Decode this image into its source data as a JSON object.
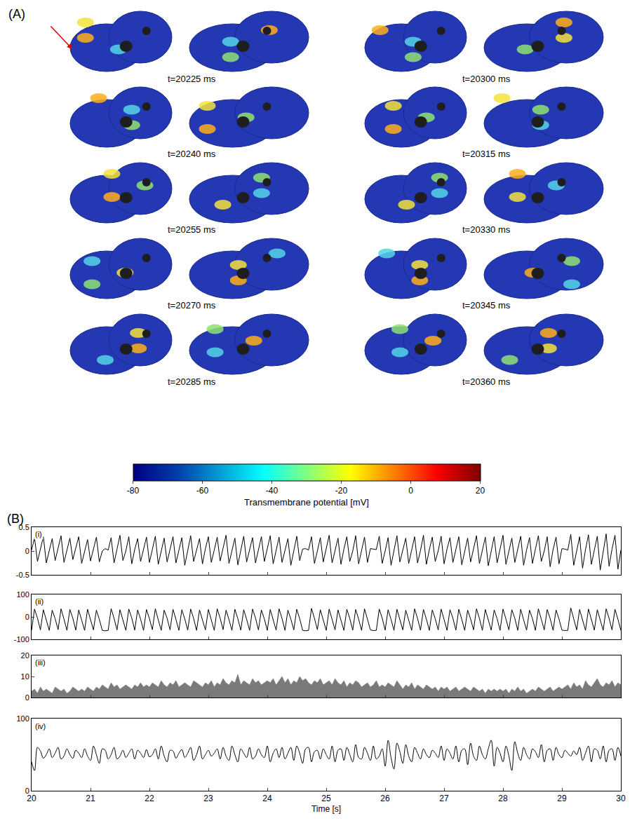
{
  "panel_a": {
    "label": "(A)",
    "snapshots": [
      {
        "label": "t=20225 ms"
      },
      {
        "label": "t=20240 ms"
      },
      {
        "label": "t=20255 ms"
      },
      {
        "label": "t=20270 ms"
      },
      {
        "label": "t=20285 ms"
      },
      {
        "label": "t=20300 ms"
      },
      {
        "label": "t=20315 ms"
      },
      {
        "label": "t=20330 ms"
      },
      {
        "label": "t=20345 ms"
      },
      {
        "label": "t=20360 ms"
      }
    ],
    "colorbar": {
      "title": "Transmembrane potential [mV]",
      "range": [
        -80,
        20
      ],
      "ticks": [
        -80,
        -60,
        -40,
        -20,
        0,
        20
      ]
    }
  },
  "panel_b": {
    "label": "(B)"
  },
  "shared_x": {
    "xlabel": "Time [s]",
    "xlim": [
      20,
      30
    ],
    "xticks": [
      20,
      21,
      22,
      23,
      24,
      25,
      26,
      27,
      28,
      29,
      30
    ],
    "x": [
      20,
      20.05,
      20.1,
      20.15,
      20.2,
      20.25,
      20.3,
      20.35,
      20.4,
      20.45,
      20.5,
      20.55,
      20.6,
      20.65,
      20.7,
      20.75,
      20.8,
      20.85,
      20.9,
      20.95,
      21,
      21.05,
      21.1,
      21.15,
      21.2,
      21.25,
      21.3,
      21.35,
      21.4,
      21.45,
      21.5,
      21.55,
      21.6,
      21.65,
      21.7,
      21.75,
      21.8,
      21.85,
      21.9,
      21.95,
      22,
      22.05,
      22.1,
      22.15,
      22.2,
      22.25,
      22.3,
      22.35,
      22.4,
      22.45,
      22.5,
      22.55,
      22.6,
      22.65,
      22.7,
      22.75,
      22.8,
      22.85,
      22.9,
      22.95,
      23,
      23.05,
      23.1,
      23.15,
      23.2,
      23.25,
      23.3,
      23.35,
      23.4,
      23.45,
      23.5,
      23.55,
      23.6,
      23.65,
      23.7,
      23.75,
      23.8,
      23.85,
      23.9,
      23.95,
      24,
      24.05,
      24.1,
      24.15,
      24.2,
      24.25,
      24.3,
      24.35,
      24.4,
      24.45,
      24.5,
      24.55,
      24.6,
      24.65,
      24.7,
      24.75,
      24.8,
      24.85,
      24.9,
      24.95,
      25,
      25.05,
      25.1,
      25.15,
      25.2,
      25.25,
      25.3,
      25.35,
      25.4,
      25.45,
      25.5,
      25.55,
      25.6,
      25.65,
      25.7,
      25.75,
      25.8,
      25.85,
      25.9,
      25.95,
      26,
      26.05,
      26.1,
      26.15,
      26.2,
      26.25,
      26.3,
      26.35,
      26.4,
      26.45,
      26.5,
      26.55,
      26.6,
      26.65,
      26.7,
      26.75,
      26.8,
      26.85,
      26.9,
      26.95,
      27,
      27.05,
      27.1,
      27.15,
      27.2,
      27.25,
      27.3,
      27.35,
      27.4,
      27.45,
      27.5,
      27.55,
      27.6,
      27.65,
      27.7,
      27.75,
      27.8,
      27.85,
      27.9,
      27.95,
      28,
      28.05,
      28.1,
      28.15,
      28.2,
      28.25,
      28.3,
      28.35,
      28.4,
      28.45,
      28.5,
      28.55,
      28.6,
      28.65,
      28.7,
      28.75,
      28.8,
      28.85,
      28.9,
      28.95,
      29,
      29.05,
      29.1,
      29.15,
      29.2,
      29.25,
      29.3,
      29.35,
      29.4,
      29.45,
      29.5,
      29.55,
      29.6,
      29.65,
      29.7,
      29.75,
      29.8,
      29.85,
      29.9,
      29.95,
      30
    ]
  },
  "chart_data": [
    {
      "type": "line",
      "label": "(i)",
      "ylim": [
        -0.5,
        0.5
      ],
      "yticks": [
        -0.5,
        0,
        0.5
      ],
      "grid": false,
      "tick_labels": "y",
      "series": [
        {
          "color": "#000000",
          "line_style": "solid",
          "values": [
            0.02,
            0.28,
            -0.22,
            0.05,
            0.3,
            -0.25,
            0.0,
            0.26,
            -0.2,
            0.04,
            0.32,
            -0.24,
            0.02,
            0.27,
            -0.18,
            0.06,
            0.3,
            -0.26,
            0.01,
            0.24,
            -0.21,
            0.03,
            0.29,
            -0.23,
            0.0,
            0.05,
            0.02,
            0.28,
            -0.25,
            0.04,
            0.33,
            -0.2,
            0.0,
            0.3,
            -0.27,
            0.03,
            0.26,
            -0.22,
            0.05,
            0.29,
            -0.24,
            0.02,
            0.31,
            -0.28,
            0.0,
            0.27,
            -0.23,
            0.04,
            0.3,
            -0.25,
            0.02,
            0.28,
            -0.3,
            0.03,
            0.32,
            -0.22,
            0.0,
            0.26,
            -0.27,
            0.05,
            0.3,
            -0.24,
            0.02,
            0.29,
            -0.21,
            0.04,
            0.33,
            -0.26,
            0.0,
            0.27,
            -0.29,
            0.03,
            0.31,
            -0.23,
            0.05,
            0.28,
            -0.25,
            0.01,
            0.3,
            -0.22,
            0.04,
            0.32,
            -0.27,
            0.0,
            0.29,
            -0.24,
            0.03,
            0.26,
            -0.3,
            0.02,
            0.31,
            -0.2,
            0.04,
            0.05,
            0.02,
            0.3,
            -0.26,
            0.0,
            0.28,
            -0.23,
            0.03,
            0.33,
            -0.25,
            0.01,
            0.27,
            -0.28,
            0.04,
            0.3,
            -0.22,
            0.0,
            0.32,
            -0.27,
            0.02,
            0.29,
            -0.24,
            0.05,
            0.04,
            0.03,
            0.31,
            -0.26,
            0.0,
            0.28,
            -0.3,
            0.03,
            0.32,
            -0.23,
            0.02,
            0.27,
            -0.26,
            0.04,
            0.3,
            -0.25,
            0.01,
            0.33,
            -0.28,
            0.03,
            0.29,
            -0.22,
            0.0,
            0.31,
            -0.27,
            0.04,
            0.28,
            -0.24,
            0.02,
            0.3,
            -0.29,
            0.0,
            0.27,
            -0.23,
            0.05,
            0.32,
            -0.26,
            0.03,
            0.29,
            -0.31,
            0.01,
            0.3,
            -0.25,
            0.04,
            0.33,
            -0.28,
            0.0,
            0.27,
            -0.24,
            0.03,
            0.31,
            -0.3,
            0.02,
            0.28,
            -0.26,
            0.04,
            0.32,
            -0.22,
            0.0,
            0.3,
            -0.33,
            0.03,
            0.29,
            -0.27,
            0.05,
            0.04,
            0.02,
            0.35,
            -0.3,
            0.0,
            0.3,
            -0.36,
            0.03,
            0.34,
            -0.28,
            0.02,
            0.31,
            -0.4,
            0.0,
            0.36,
            -0.32,
            0.04,
            0.33,
            -0.38,
            0.02
          ]
        }
      ]
    },
    {
      "type": "line",
      "label": "(ii)",
      "ylim": [
        -100,
        100
      ],
      "yticks": [
        -100,
        0,
        100
      ],
      "grid": false,
      "tick_labels": "y",
      "series": [
        {
          "color": "#000000",
          "line_style": "solid",
          "values": [
            -60,
            35,
            -5,
            -58,
            32,
            -12,
            -60,
            30,
            -8,
            -57,
            36,
            -10,
            -60,
            33,
            -6,
            -59,
            31,
            -14,
            -60,
            34,
            -9,
            -58,
            30,
            -11,
            -60,
            -62,
            -60,
            37,
            -7,
            -58,
            32,
            -12,
            -60,
            35,
            -5,
            -59,
            31,
            -10,
            -60,
            33,
            -8,
            -57,
            36,
            -13,
            -60,
            30,
            -6,
            -58,
            34,
            -11,
            -60,
            32,
            -9,
            -59,
            35,
            -7,
            -60,
            31,
            -12,
            -58,
            33,
            -10,
            -60,
            36,
            -6,
            -57,
            30,
            -12,
            -60,
            34,
            -8,
            -59,
            32,
            -11,
            -60,
            35,
            -5,
            -58,
            31,
            -9,
            -60,
            33,
            -13,
            -59,
            36,
            -7,
            -60,
            30,
            -10,
            -58,
            34,
            -8,
            -60,
            -62,
            -60,
            38,
            -6,
            -57,
            32,
            -11,
            -60,
            35,
            -9,
            -58,
            31,
            -12,
            -60,
            34,
            -7,
            -59,
            33,
            -10,
            -60,
            36,
            -8,
            -58,
            -61,
            -60,
            35,
            -6,
            -59,
            32,
            -11,
            -60,
            34,
            -9,
            -58,
            30,
            -13,
            -60,
            36,
            -7,
            -59,
            33,
            -10,
            -60,
            31,
            -8,
            -58,
            35,
            -12,
            -60,
            32,
            -6,
            -59,
            34,
            -11,
            -60,
            30,
            -9,
            -58,
            36,
            -7,
            -60,
            33,
            -12,
            -59,
            31,
            -8,
            -60,
            35,
            -10,
            -58,
            32,
            -6,
            -60,
            34,
            -13,
            -59,
            30,
            -8,
            -60,
            36,
            -11,
            -58,
            33,
            -7,
            -60,
            31,
            -9,
            -59,
            -61,
            -60,
            40,
            -5,
            -58,
            33,
            -10,
            -60,
            35,
            -8,
            -59,
            32,
            -12,
            -60,
            36,
            -6,
            -58,
            34,
            -10,
            -60
          ]
        }
      ]
    },
    {
      "type": "area",
      "label": "(iii)",
      "ylim": [
        0,
        20
      ],
      "yticks": [
        0,
        10,
        20
      ],
      "grid": false,
      "tick_labels": "y",
      "series": [
        {
          "color": "#7a7a7a",
          "line_style": "solid",
          "values": [
            3,
            4,
            2,
            5,
            3,
            4,
            3,
            2,
            5,
            4,
            3,
            4,
            2,
            3,
            5,
            4,
            3,
            4,
            3,
            5,
            4,
            3,
            5,
            4,
            6,
            5,
            4,
            7,
            5,
            6,
            4,
            5,
            6,
            5,
            4,
            6,
            5,
            7,
            5,
            6,
            5,
            7,
            6,
            5,
            8,
            6,
            5,
            7,
            6,
            8,
            5,
            6,
            7,
            6,
            5,
            8,
            7,
            6,
            5,
            7,
            6,
            8,
            5,
            7,
            6,
            9,
            7,
            6,
            8,
            7,
            11,
            6,
            8,
            7,
            6,
            9,
            7,
            8,
            6,
            7,
            8,
            7,
            9,
            6,
            8,
            10,
            7,
            9,
            6,
            8,
            7,
            10,
            8,
            9,
            7,
            6,
            8,
            7,
            9,
            6,
            7,
            8,
            6,
            9,
            7,
            6,
            8,
            5,
            7,
            6,
            8,
            7,
            5,
            6,
            7,
            5,
            6,
            8,
            5,
            6,
            5,
            7,
            6,
            5,
            8,
            6,
            4,
            6,
            5,
            7,
            4,
            6,
            5,
            4,
            6,
            5,
            4,
            5,
            3,
            5,
            4,
            5,
            3,
            4,
            5,
            3,
            4,
            5,
            4,
            3,
            5,
            4,
            3,
            4,
            2,
            4,
            3,
            4,
            3,
            4,
            3,
            4,
            2,
            4,
            3,
            5,
            3,
            4,
            2,
            3,
            4,
            3,
            5,
            4,
            3,
            4,
            5,
            3,
            4,
            5,
            4,
            5,
            6,
            4,
            7,
            5,
            6,
            4,
            8,
            6,
            5,
            7,
            9,
            6,
            5,
            7,
            6,
            8,
            5,
            7,
            6
          ]
        }
      ]
    },
    {
      "type": "line",
      "label": "(iv)",
      "ylim": [
        0,
        100
      ],
      "yticks": [
        0,
        100
      ],
      "grid": false,
      "series": [
        {
          "color": "#000000",
          "line_style": "smooth",
          "values": [
            40,
            28,
            60,
            55,
            45,
            50,
            58,
            46,
            52,
            60,
            44,
            48,
            58,
            50,
            45,
            56,
            52,
            46,
            58,
            48,
            42,
            62,
            50,
            38,
            58,
            56,
            44,
            50,
            60,
            44,
            48,
            56,
            46,
            52,
            58,
            44,
            56,
            52,
            46,
            57,
            47,
            50,
            58,
            44,
            62,
            48,
            40,
            56,
            55,
            45,
            52,
            57,
            46,
            52,
            60,
            42,
            50,
            62,
            44,
            50,
            56,
            48,
            52,
            58,
            44,
            60,
            48,
            42,
            62,
            50,
            40,
            58,
            52,
            46,
            60,
            44,
            48,
            58,
            50,
            46,
            62,
            40,
            52,
            58,
            46,
            60,
            44,
            52,
            60,
            42,
            62,
            52,
            38,
            58,
            60,
            40,
            54,
            56,
            44,
            58,
            50,
            44,
            62,
            40,
            56,
            58,
            42,
            60,
            50,
            40,
            64,
            46,
            44,
            60,
            52,
            42,
            62,
            44,
            48,
            58,
            34,
            70,
            46,
            30,
            66,
            54,
            38,
            64,
            48,
            40,
            60,
            52,
            44,
            58,
            50,
            46,
            56,
            52,
            46,
            62,
            42,
            58,
            52,
            44,
            62,
            40,
            56,
            58,
            36,
            66,
            48,
            42,
            62,
            50,
            44,
            58,
            70,
            34,
            60,
            52,
            40,
            62,
            48,
            28,
            68,
            52,
            42,
            60,
            50,
            44,
            58,
            54,
            46,
            64,
            40,
            56,
            58,
            42,
            60,
            50,
            46,
            56,
            52,
            48,
            55,
            50,
            60,
            42,
            52,
            62,
            40,
            58,
            56,
            44,
            62,
            40,
            56,
            58,
            42,
            60,
            48
          ]
        }
      ]
    }
  ]
}
